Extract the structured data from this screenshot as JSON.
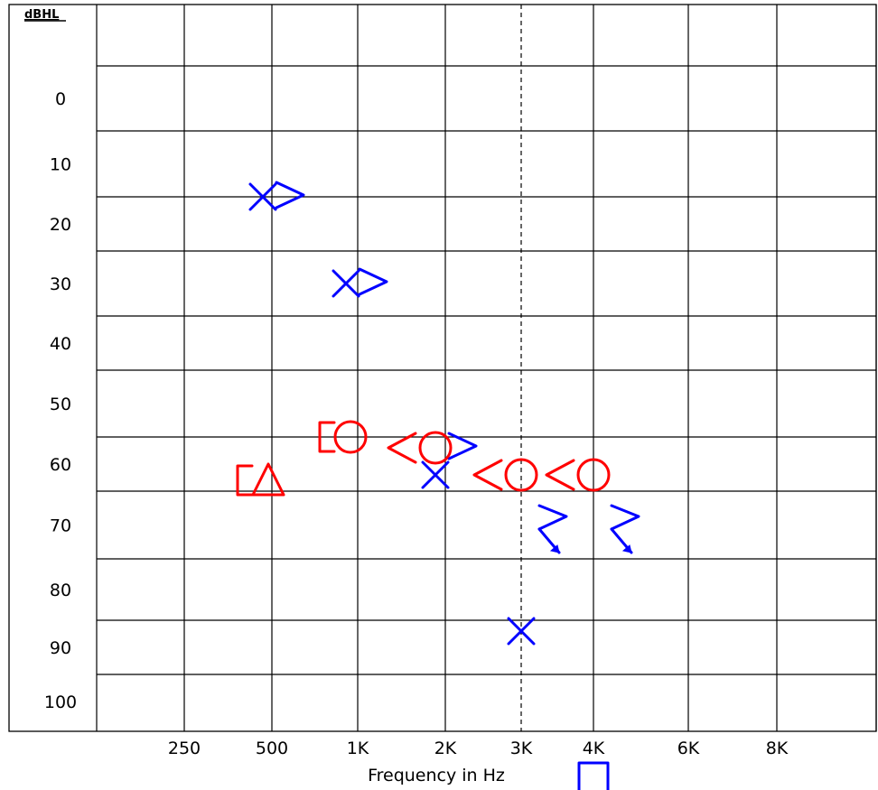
{
  "chart_data": {
    "type": "scatter",
    "subtype": "audiogram",
    "title": "",
    "xlabel": "Frequency in Hz",
    "ylabel": "dBHL",
    "x_ticks": [
      "250",
      "500",
      "1K",
      "2K",
      "3K",
      "4K",
      "6K",
      "8K"
    ],
    "y_ticks": [
      "0",
      "10",
      "20",
      "30",
      "40",
      "50",
      "60",
      "70",
      "80",
      "90",
      "100"
    ],
    "ylim": [
      -10,
      120
    ],
    "grid": true,
    "reference_line": {
      "x": "3K",
      "style": "dashed"
    },
    "colors": {
      "red": "#ff0000",
      "blue": "#0000ff",
      "grid": "#000000"
    },
    "series": [
      {
        "symbol": "x",
        "color": "blue",
        "points": [
          {
            "x": "500",
            "y": 15
          },
          {
            "x": "1K",
            "y": 30
          },
          {
            "x": "2K",
            "y": 62
          },
          {
            "x": "3K",
            "y": 87
          }
        ]
      },
      {
        "symbol": ">",
        "color": "blue",
        "points": [
          {
            "x": "500",
            "y": 15
          },
          {
            "x": "1K",
            "y": 30
          },
          {
            "x": "2K",
            "y": 57
          }
        ]
      },
      {
        "symbol": ">-no-response",
        "color": "blue",
        "points": [
          {
            "x": "3K",
            "y": 69
          },
          {
            "x": "4K",
            "y": 69
          }
        ]
      },
      {
        "symbol": "square",
        "color": "blue",
        "points": [
          {
            "x": "4K",
            "y": 114
          }
        ]
      },
      {
        "symbol": "o",
        "color": "red",
        "points": [
          {
            "x": "1K",
            "y": 55
          },
          {
            "x": "2K",
            "y": 57
          },
          {
            "x": "3K",
            "y": 62
          },
          {
            "x": "4K",
            "y": 62
          }
        ]
      },
      {
        "symbol": "<",
        "color": "red",
        "points": [
          {
            "x": "2K",
            "y": 57
          },
          {
            "x": "3K",
            "y": 62
          },
          {
            "x": "4K",
            "y": 62
          }
        ]
      },
      {
        "symbol": "[",
        "color": "red",
        "points": [
          {
            "x": "1K",
            "y": 55
          },
          {
            "x": "500",
            "y": 63
          }
        ]
      },
      {
        "symbol": "triangle",
        "color": "red",
        "points": [
          {
            "x": "500",
            "y": 63
          }
        ]
      }
    ]
  }
}
